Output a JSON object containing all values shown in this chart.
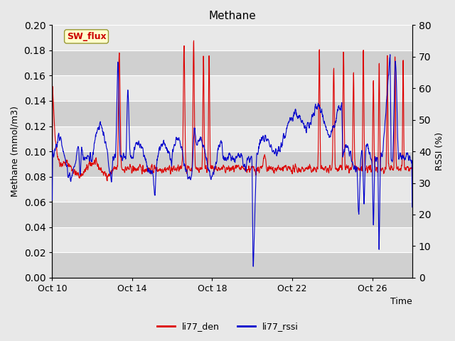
{
  "title": "Methane",
  "xlabel": "Time",
  "ylabel_left": "Methane (mmol/m3)",
  "ylabel_right": "RSSI (%)",
  "ylim_left": [
    0.0,
    0.2
  ],
  "ylim_right": [
    0,
    80
  ],
  "yticks_left": [
    0.0,
    0.02,
    0.04,
    0.06,
    0.08,
    0.1,
    0.12,
    0.14,
    0.16,
    0.18,
    0.2
  ],
  "yticks_right": [
    0,
    10,
    20,
    30,
    40,
    50,
    60,
    70,
    80
  ],
  "xtick_labels": [
    "Oct 10",
    "Oct 14",
    "Oct 18",
    "Oct 22",
    "Oct 26"
  ],
  "annotation_label": "SW_flux",
  "annotation_color_bg": "#ffffcc",
  "annotation_color_border": "#999933",
  "annotation_color_text": "#cc0000",
  "line_red_label": "li77_den",
  "line_blue_label": "li77_rssi",
  "line_red_color": "#dd0000",
  "line_blue_color": "#0000cc",
  "bg_color": "#e8e8e8",
  "stripe_dark": "#d0d0d0",
  "stripe_light": "#e8e8e8",
  "seed": 42
}
